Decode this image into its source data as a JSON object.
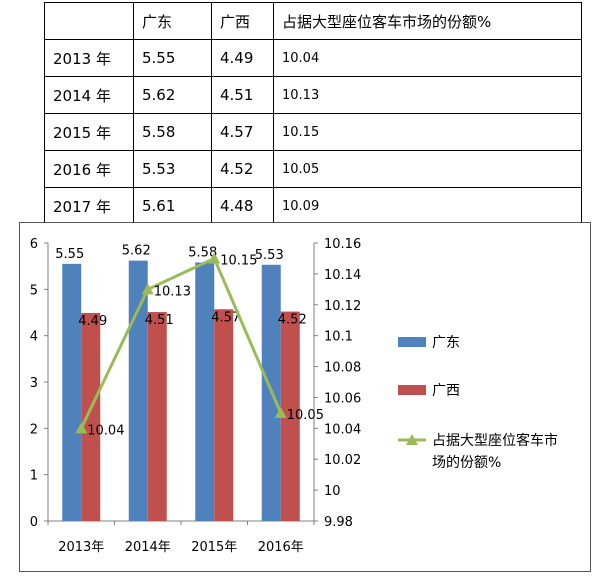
{
  "table": {
    "header": [
      "",
      "广东",
      "广西",
      "占据大型座位客车市场的份额%"
    ],
    "rows": [
      [
        "2013 年",
        "5.55",
        "4.49",
        "10.04"
      ],
      [
        "2014 年",
        "5.62",
        "4.51",
        "10.13"
      ],
      [
        "2015 年",
        "5.58",
        "4.57",
        "10.15"
      ],
      [
        "2016 年",
        "5.53",
        "4.52",
        "10.05"
      ],
      [
        "2017 年",
        "5.61",
        "4.48",
        "10.09"
      ]
    ]
  },
  "chart_data": {
    "type": "bar",
    "categories": [
      "2013年",
      "2014年",
      "2015年",
      "2016年"
    ],
    "series": [
      {
        "name": "广东",
        "type": "bar",
        "axis": "left",
        "color": "#4F81BD",
        "values": [
          5.55,
          5.62,
          5.58,
          5.53
        ]
      },
      {
        "name": "广西",
        "type": "bar",
        "axis": "left",
        "color": "#C0504D",
        "values": [
          4.49,
          4.51,
          4.57,
          4.52
        ]
      },
      {
        "name": "占据大型座位客车市场的份额%",
        "legend_lines": [
          "占据大型座位客车市",
          "场的份额%"
        ],
        "type": "line",
        "axis": "right",
        "color": "#9BBB59",
        "values": [
          10.04,
          10.13,
          10.15,
          10.05
        ]
      }
    ],
    "y_left": {
      "min": 0,
      "max": 6,
      "ticks": [
        "0",
        "1",
        "2",
        "3",
        "4",
        "5",
        "6"
      ]
    },
    "y_right": {
      "min": 9.98,
      "max": 10.16,
      "ticks": [
        "9.98",
        "10",
        "10.02",
        "10.04",
        "10.06",
        "10.08",
        "10.1",
        "10.12",
        "10.14",
        "10.16"
      ]
    },
    "title": "",
    "xlabel": "",
    "ylabel": "",
    "grid": false,
    "legend_position": "right"
  }
}
